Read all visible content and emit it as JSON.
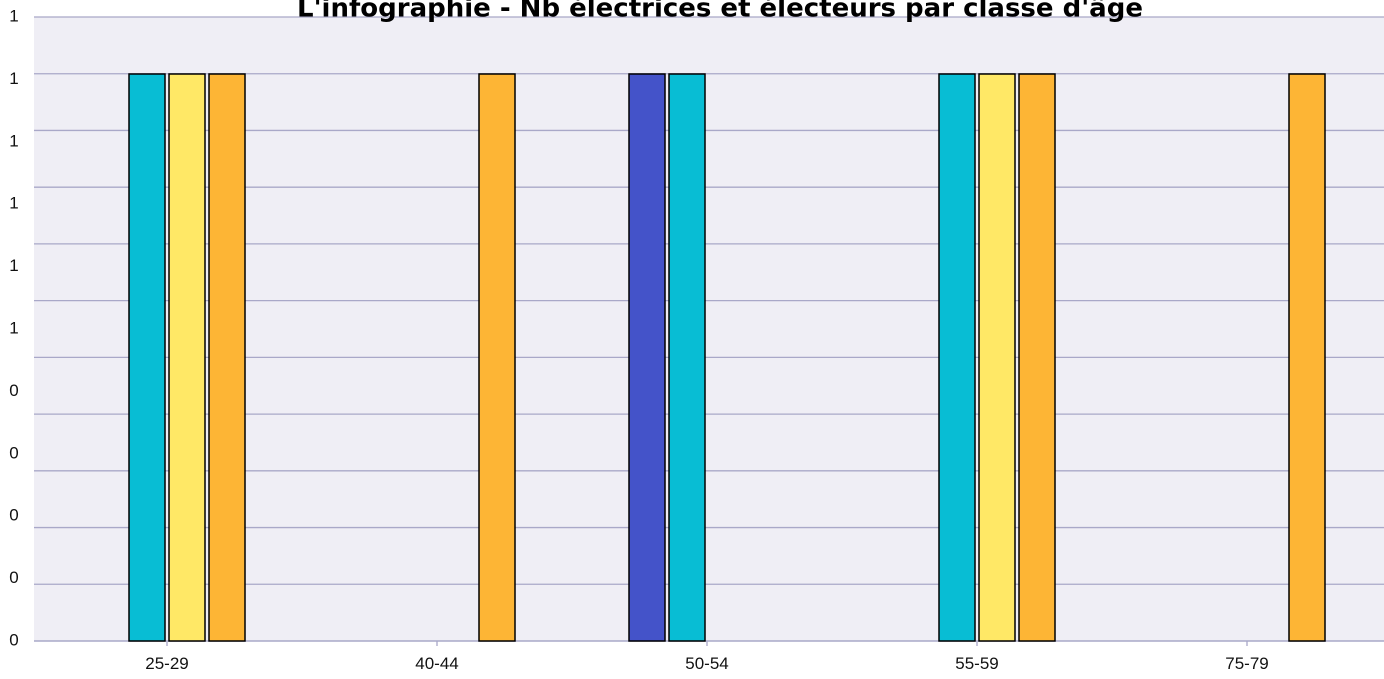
{
  "chart_data": {
    "type": "bar",
    "title": "L'infographie - Nb électrices et électeurs par classe d'âge",
    "xlabel": "",
    "ylabel": "",
    "categories": [
      "25-29",
      "40-44",
      "50-54",
      "55-59",
      "75-79"
    ],
    "y_tick_labels": [
      "0",
      "0",
      "0",
      "0",
      "0",
      "1",
      "1",
      "1",
      "1",
      "1",
      "1"
    ],
    "ylim": [
      0,
      1
    ],
    "grid": true,
    "legend": "none",
    "series": [
      {
        "color": "#4453c9",
        "values": [
          0,
          0,
          1,
          0,
          0
        ]
      },
      {
        "color": "#08bdd4",
        "values": [
          1,
          0,
          1,
          1,
          0
        ]
      },
      {
        "color": "#ffe866",
        "values": [
          1,
          0,
          0,
          1,
          0
        ]
      },
      {
        "color": "#fdb535",
        "values": [
          1,
          1,
          0,
          1,
          1
        ]
      }
    ],
    "colors": {
      "plot_background": "#efeef5",
      "grid": "#a9a8c8",
      "bar_border": "#000000"
    }
  }
}
